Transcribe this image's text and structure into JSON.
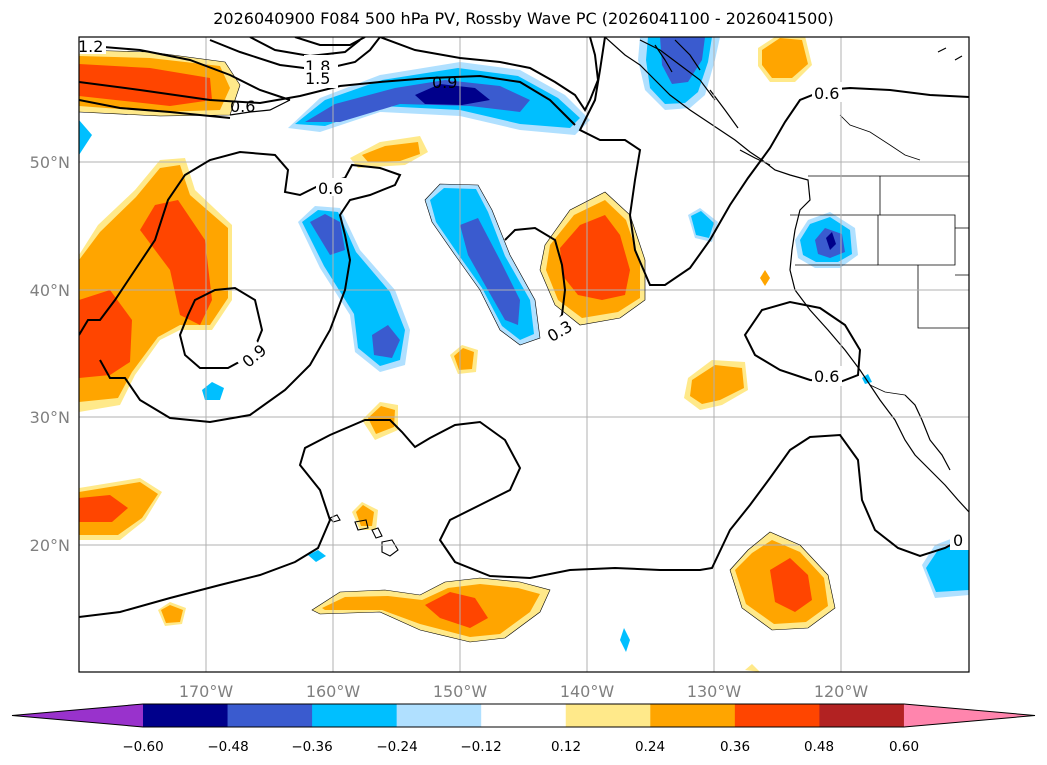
{
  "title": "2026040900 F084 500 hPa PV, Rossby Wave PC (2026041100 - 2026041500)",
  "map": {
    "lon_ticks": [
      "170°W",
      "160°W",
      "150°W",
      "140°W",
      "130°W",
      "120°W"
    ],
    "lat_ticks": [
      "50°N",
      "40°N",
      "30°N",
      "20°N"
    ],
    "grid": true
  },
  "colorbar": {
    "bins": [
      "#9932cc",
      "#00008b",
      "#3a5bcf",
      "#00bfff",
      "#b0e0ff",
      "#ffffff",
      "#ffe98a",
      "#ffa500",
      "#ff4500",
      "#b22222",
      "#ff85ad"
    ],
    "tick_labels": [
      "−0.60",
      "−0.48",
      "−0.36",
      "−0.24",
      "−0.12",
      "0.12",
      "0.24",
      "0.36",
      "0.48",
      "0.60"
    ],
    "extend": "both"
  },
  "contour_labels": [
    "1.2",
    "1.8",
    "1.5",
    "0.9",
    "0.6",
    "0.6",
    "0.6",
    "0.9",
    "0.3",
    "0.6",
    "0"
  ],
  "colors": {
    "pos_light": "#ffe98a",
    "pos_mid": "#ffa500",
    "pos_high": "#ff4500",
    "neg_light": "#b0e0ff",
    "neg_mid": "#00bfff",
    "neg_strong": "#3a5bcf",
    "neg_dark": "#00008b"
  }
}
